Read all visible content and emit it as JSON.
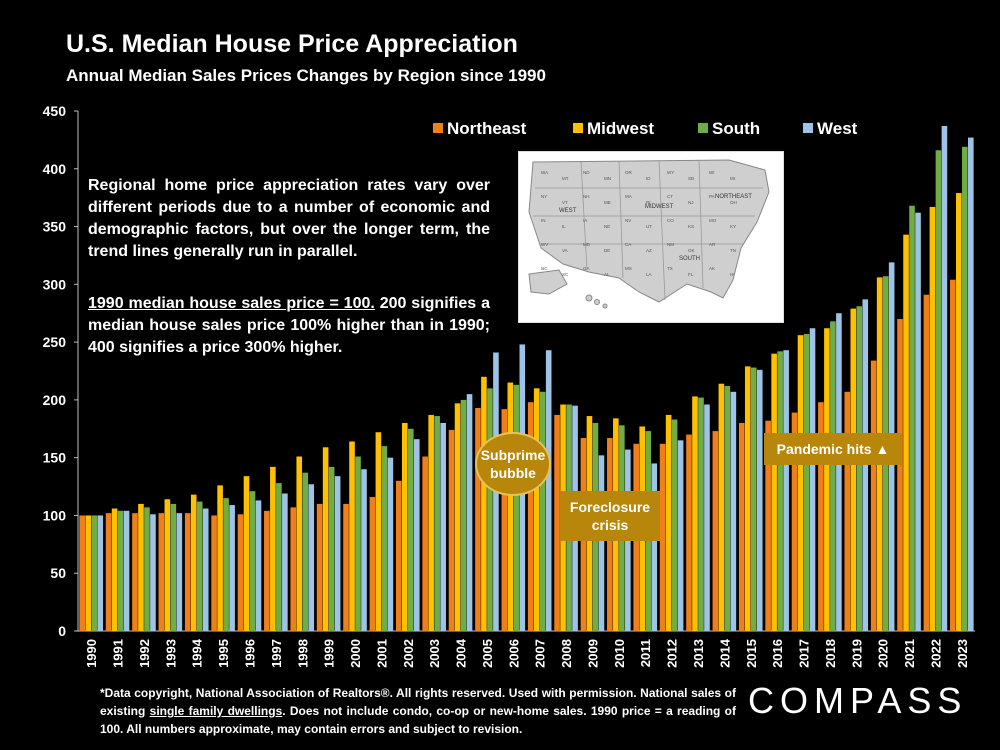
{
  "header": {
    "title": "U.S. Median House Price Appreciation",
    "subtitle": "Annual Median Sales Prices Changes by Region since 1990"
  },
  "text": {
    "description": "Regional home price appreciation rates vary over different periods due to a number of economic and demographic factors, but over the longer term, the trend lines generally run in parallel.",
    "note_underlined": "1990 median house sales price = 100.",
    "note_rest": " 200 signifies a median house sales price 100% higher than in 1990; 400 signifies a price 300% higher."
  },
  "annotations": {
    "subprime": "Subprime bubble",
    "foreclosure": "Foreclosure crisis",
    "pandemic": "Pandemic hits ▲"
  },
  "map": {
    "labels": [
      "WEST",
      "MIDWEST",
      "NORTHEAST",
      "SOUTH"
    ],
    "states": [
      "WA",
      "MT",
      "ND",
      "MN",
      "OR",
      "ID",
      "WY",
      "SD",
      "WI",
      "MI",
      "NY",
      "VT",
      "NH",
      "ME",
      "MA",
      "RI",
      "CT",
      "NJ",
      "PA",
      "OH",
      "IN",
      "IL",
      "IA",
      "NE",
      "NV",
      "UT",
      "CO",
      "KS",
      "MO",
      "KY",
      "WV",
      "VA",
      "MD",
      "DE",
      "CA",
      "AZ",
      "NM",
      "OK",
      "AR",
      "TN",
      "NC",
      "SC",
      "GA",
      "AL",
      "MS",
      "LA",
      "TX",
      "FL",
      "AK",
      "HI"
    ]
  },
  "footer": {
    "line_a": "*Data copyright, National Association of Realtors®. All rights reserved. Used with permission. National sales of existing ",
    "line_u": "single family dwellings",
    "line_b": ". Does not include condo, co-op or new-home sales. 1990 price = a reading of 100. All numbers approximate, may contain errors and subject to revision."
  },
  "brand": {
    "logo": "COMPASS"
  },
  "chart_data": {
    "type": "bar",
    "categories": [
      "1990",
      "1991",
      "1992",
      "1993",
      "1994",
      "1995",
      "1996",
      "1997",
      "1998",
      "1999",
      "2000",
      "2001",
      "2002",
      "2003",
      "2004",
      "2005",
      "2006",
      "2007",
      "2008",
      "2009",
      "2010",
      "2011",
      "2012",
      "2013",
      "2014",
      "2015",
      "2016",
      "2017",
      "2018",
      "2019",
      "2020",
      "2021",
      "2022",
      "2023"
    ],
    "ylim": [
      0,
      450
    ],
    "yticks": [
      0,
      50,
      100,
      150,
      200,
      250,
      300,
      350,
      400,
      450
    ],
    "grid": false,
    "legend": "top-right",
    "series": [
      {
        "name": "Northeast",
        "color": "#f07f1a",
        "values": [
          100,
          102,
          102,
          102,
          102,
          100,
          101,
          104,
          107,
          110,
          110,
          116,
          130,
          151,
          174,
          193,
          192,
          198,
          187,
          167,
          167,
          162,
          162,
          170,
          173,
          180,
          182,
          189,
          198,
          207,
          234,
          270,
          291,
          304
        ]
      },
      {
        "name": "Midwest",
        "color": "#ffc000",
        "values": [
          100,
          106,
          110,
          114,
          118,
          126,
          134,
          142,
          151,
          159,
          164,
          172,
          180,
          187,
          197,
          220,
          215,
          210,
          196,
          186,
          184,
          177,
          187,
          203,
          214,
          229,
          240,
          256,
          262,
          279,
          306,
          343,
          367,
          379
        ]
      },
      {
        "name": "South",
        "color": "#70ad47",
        "values": [
          100,
          104,
          107,
          110,
          112,
          115,
          121,
          128,
          137,
          142,
          151,
          160,
          175,
          186,
          200,
          210,
          213,
          207,
          196,
          180,
          178,
          173,
          183,
          202,
          212,
          228,
          242,
          257,
          268,
          281,
          307,
          368,
          416,
          419
        ]
      },
      {
        "name": "West",
        "color": "#9dc3e6",
        "values": [
          100,
          104,
          101,
          102,
          106,
          109,
          113,
          119,
          127,
          134,
          140,
          150,
          166,
          180,
          205,
          241,
          248,
          243,
          195,
          152,
          157,
          145,
          165,
          196,
          207,
          226,
          243,
          262,
          275,
          287,
          319,
          362,
          437,
          427
        ]
      }
    ]
  }
}
